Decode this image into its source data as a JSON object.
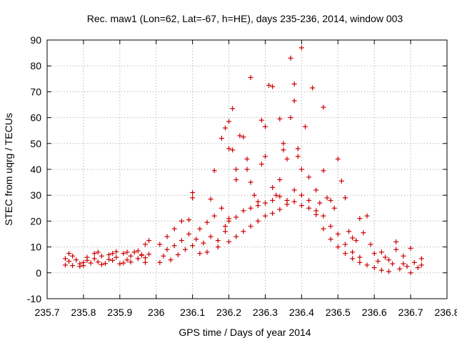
{
  "chart_data": {
    "type": "scatter",
    "title": "Rec. maw1 (Lon=62, Lat=-67, h=HE), days 235-236, 2014, window 003",
    "xlabel": "GPS time / Days of year 2014",
    "ylabel": "STEC from uqrg / TECUs",
    "xlim": [
      235.7,
      236.8
    ],
    "ylim": [
      -10,
      90
    ],
    "xticks": [
      "235.7",
      "235.8",
      "235.9",
      "236",
      "236.1",
      "236.2",
      "236.3",
      "236.4",
      "236.5",
      "236.6",
      "236.7",
      "236.8"
    ],
    "yticks": [
      "-10",
      "0",
      "10",
      "20",
      "30",
      "40",
      "50",
      "60",
      "70",
      "80",
      "90"
    ],
    "grid": true,
    "marker": "plus",
    "color": "#cc0000",
    "series": [
      {
        "points": [
          [
            235.75,
            3.0
          ],
          [
            235.76,
            4.5
          ],
          [
            235.77,
            2.8
          ],
          [
            235.78,
            5.0
          ],
          [
            235.79,
            3.5
          ],
          [
            235.8,
            4.0
          ],
          [
            235.81,
            6.0
          ],
          [
            235.82,
            3.8
          ],
          [
            235.83,
            5.5
          ],
          [
            235.84,
            4.2
          ],
          [
            235.85,
            6.5
          ],
          [
            235.86,
            3.6
          ],
          [
            235.87,
            7.0
          ],
          [
            235.88,
            4.8
          ],
          [
            235.89,
            6.0
          ],
          [
            235.9,
            3.5
          ],
          [
            235.91,
            7.5
          ],
          [
            235.92,
            5.0
          ],
          [
            235.93,
            4.2
          ],
          [
            235.94,
            8.0
          ],
          [
            235.95,
            5.5
          ],
          [
            235.96,
            6.8
          ],
          [
            235.97,
            4.0
          ],
          [
            235.98,
            7.2
          ],
          [
            235.75,
            5.5
          ],
          [
            235.77,
            6.5
          ],
          [
            235.79,
            2.5
          ],
          [
            235.81,
            4.8
          ],
          [
            235.83,
            7.5
          ],
          [
            235.85,
            3.2
          ],
          [
            235.87,
            5.2
          ],
          [
            235.89,
            8.2
          ],
          [
            235.91,
            3.8
          ],
          [
            235.93,
            6.5
          ],
          [
            235.95,
            8.5
          ],
          [
            235.97,
            5.8
          ],
          [
            235.98,
            12.5
          ],
          [
            235.97,
            11.0
          ],
          [
            235.76,
            7.5
          ],
          [
            235.8,
            2.8
          ],
          [
            235.84,
            8.0
          ],
          [
            235.88,
            7.5
          ],
          [
            235.92,
            8.0
          ],
          [
            235.96,
            7.0
          ],
          [
            236.01,
            4.0
          ],
          [
            236.02,
            6.5
          ],
          [
            236.03,
            9.0
          ],
          [
            236.04,
            5.0
          ],
          [
            236.05,
            10.5
          ],
          [
            236.06,
            7.0
          ],
          [
            236.07,
            12.5
          ],
          [
            236.08,
            9.0
          ],
          [
            236.09,
            15.0
          ],
          [
            236.1,
            10.5
          ],
          [
            236.11,
            13.0
          ],
          [
            236.12,
            17.0
          ],
          [
            236.13,
            11.5
          ],
          [
            236.14,
            19.5
          ],
          [
            236.15,
            14.0
          ],
          [
            236.16,
            22.0
          ],
          [
            236.17,
            12.5
          ],
          [
            236.18,
            25.0
          ],
          [
            236.19,
            16.0
          ],
          [
            236.2,
            21.0
          ],
          [
            236.01,
            11.0
          ],
          [
            236.03,
            14.0
          ],
          [
            236.05,
            17.0
          ],
          [
            236.07,
            20.0
          ],
          [
            236.09,
            20.5
          ],
          [
            236.1,
            29.0
          ],
          [
            236.1,
            31.0
          ],
          [
            236.12,
            7.5
          ],
          [
            236.14,
            8.0
          ],
          [
            236.15,
            28.5
          ],
          [
            236.16,
            39.5
          ],
          [
            236.17,
            10.0
          ],
          [
            236.18,
            52.0
          ],
          [
            236.19,
            56.0
          ],
          [
            236.2,
            58.5
          ],
          [
            236.2,
            48.0
          ],
          [
            236.21,
            63.5
          ],
          [
            236.21,
            47.5
          ],
          [
            236.22,
            40.0
          ],
          [
            236.22,
            36.0
          ],
          [
            236.23,
            53.0
          ],
          [
            236.24,
            52.5
          ],
          [
            236.25,
            44.0
          ],
          [
            236.25,
            40.0
          ],
          [
            236.26,
            75.5
          ],
          [
            236.26,
            35.0
          ],
          [
            236.27,
            30.0
          ],
          [
            236.28,
            27.5
          ],
          [
            236.29,
            59.0
          ],
          [
            236.29,
            42.0
          ],
          [
            236.3,
            56.5
          ],
          [
            236.3,
            45.0
          ],
          [
            236.31,
            72.5
          ],
          [
            236.32,
            72.0
          ],
          [
            236.32,
            33.0
          ],
          [
            236.33,
            30.0
          ],
          [
            236.34,
            59.5
          ],
          [
            236.34,
            36.0
          ],
          [
            236.35,
            50.0
          ],
          [
            236.35,
            47.5
          ],
          [
            236.36,
            44.0
          ],
          [
            236.37,
            83.0
          ],
          [
            236.37,
            60.0
          ],
          [
            236.38,
            66.5
          ],
          [
            236.38,
            73.0
          ],
          [
            236.39,
            48.0
          ],
          [
            236.39,
            45.0
          ],
          [
            236.4,
            87.0
          ],
          [
            236.4,
            40.0
          ],
          [
            236.41,
            56.5
          ],
          [
            236.42,
            37.0
          ],
          [
            236.43,
            71.5
          ],
          [
            236.44,
            32.0
          ],
          [
            236.45,
            27.0
          ],
          [
            236.46,
            64.0
          ],
          [
            236.46,
            39.5
          ],
          [
            236.47,
            29.0
          ],
          [
            236.48,
            28.0
          ],
          [
            236.49,
            25.0
          ],
          [
            236.5,
            44.0
          ],
          [
            236.51,
            35.5
          ],
          [
            236.52,
            29.0
          ],
          [
            236.53,
            16.0
          ],
          [
            236.54,
            13.5
          ],
          [
            236.55,
            12.5
          ],
          [
            236.56,
            21.0
          ],
          [
            236.57,
            15.5
          ],
          [
            236.58,
            22.0
          ],
          [
            236.59,
            11.0
          ],
          [
            236.6,
            7.5
          ],
          [
            236.19,
            18.0
          ],
          [
            236.2,
            20.0
          ],
          [
            236.22,
            21.5
          ],
          [
            236.24,
            24.0
          ],
          [
            236.26,
            25.0
          ],
          [
            236.28,
            26.0
          ],
          [
            236.3,
            27.0
          ],
          [
            236.32,
            28.0
          ],
          [
            236.34,
            29.5
          ],
          [
            236.36,
            28.0
          ],
          [
            236.38,
            27.5
          ],
          [
            236.4,
            26.0
          ],
          [
            236.42,
            25.0
          ],
          [
            236.44,
            24.0
          ],
          [
            236.46,
            22.0
          ],
          [
            236.48,
            18.0
          ],
          [
            236.5,
            15.0
          ],
          [
            236.52,
            11.0
          ],
          [
            236.54,
            8.0
          ],
          [
            236.56,
            6.0
          ],
          [
            236.2,
            12.0
          ],
          [
            236.22,
            14.0
          ],
          [
            236.24,
            16.0
          ],
          [
            236.26,
            18.0
          ],
          [
            236.28,
            20.0
          ],
          [
            236.3,
            22.0
          ],
          [
            236.32,
            23.0
          ],
          [
            236.34,
            24.5
          ],
          [
            236.36,
            26.5
          ],
          [
            236.38,
            32.0
          ],
          [
            236.4,
            30.0
          ],
          [
            236.42,
            28.0
          ],
          [
            236.44,
            22.5
          ],
          [
            236.46,
            17.0
          ],
          [
            236.48,
            13.0
          ],
          [
            236.5,
            10.0
          ],
          [
            236.52,
            7.5
          ],
          [
            236.54,
            5.5
          ],
          [
            236.56,
            4.0
          ],
          [
            236.58,
            3.0
          ],
          [
            236.6,
            2.0
          ],
          [
            236.61,
            4.5
          ],
          [
            236.62,
            1.0
          ],
          [
            236.63,
            6.0
          ],
          [
            236.64,
            0.5
          ],
          [
            236.65,
            3.5
          ],
          [
            236.66,
            12.0
          ],
          [
            236.66,
            9.0
          ],
          [
            236.67,
            1.5
          ],
          [
            236.68,
            6.5
          ],
          [
            236.69,
            2.5
          ],
          [
            236.7,
            9.5
          ],
          [
            236.71,
            4.0
          ],
          [
            236.72,
            2.0
          ],
          [
            236.73,
            5.5
          ],
          [
            236.73,
            3.0
          ],
          [
            236.62,
            8.0
          ],
          [
            236.64,
            5.0
          ],
          [
            236.68,
            3.5
          ],
          [
            236.7,
            0.0
          ]
        ]
      }
    ]
  }
}
